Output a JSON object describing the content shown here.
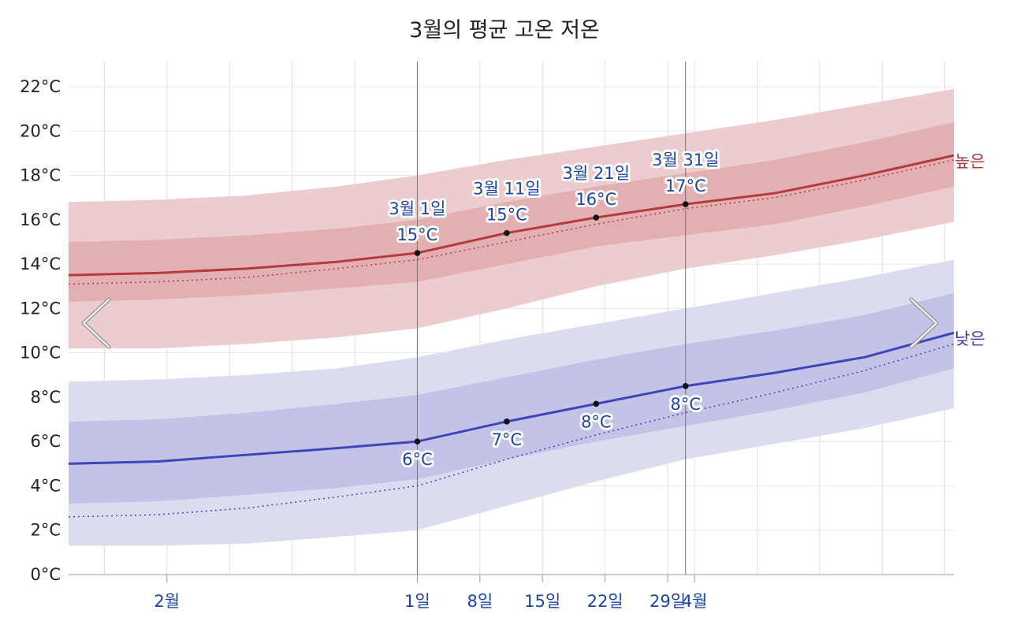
{
  "chart_data": {
    "type": "line",
    "title": "3월의 평균 고온 저온",
    "y_unit": "°C",
    "ylim": [
      0,
      22
    ],
    "y_ticks": [
      0,
      2,
      4,
      6,
      8,
      10,
      12,
      14,
      16,
      18,
      20,
      22
    ],
    "y_tick_labels": [
      "0°C",
      "2°C",
      "4°C",
      "6°C",
      "8°C",
      "10°C",
      "12°C",
      "14°C",
      "16°C",
      "18°C",
      "20°C",
      "22°C"
    ],
    "xlim": [
      "1월 21일",
      "4월 30일"
    ],
    "x_ticks": [
      {
        "label": "2월",
        "x": "2월 1일"
      },
      {
        "label": "1일",
        "x": "3월 1일"
      },
      {
        "label": "8일",
        "x": "3월 8일"
      },
      {
        "label": "15일",
        "x": "3월 15일"
      },
      {
        "label": "22일",
        "x": "3월 22일"
      },
      {
        "label": "29일",
        "x": "3월 29일"
      },
      {
        "label": "4월",
        "x": "4월 1일"
      }
    ],
    "gridlines_x": [
      "1월 25일",
      "2월 1일",
      "2월 8일",
      "2월 15일",
      "2월 22일",
      "3월 1일",
      "3월 8일",
      "3월 15일",
      "3월 22일",
      "3월 29일",
      "4월 1일",
      "4월 8일",
      "4월 15일",
      "4월 22일",
      "4월 29일"
    ],
    "month_bounds": [
      "3월 1일",
      "3월 31일"
    ],
    "grid": true,
    "series": [
      {
        "name": "높은",
        "color": "#b53a3e",
        "x": [
          "1월 21일",
          "1월 31일",
          "2월 10일",
          "2월 20일",
          "3월 1일",
          "3월 11일",
          "3월 21일",
          "3월 31일",
          "4월 10일",
          "4월 20일",
          "4월 30일"
        ],
        "mean": [
          13.5,
          13.6,
          13.8,
          14.1,
          14.5,
          15.4,
          16.1,
          16.7,
          17.2,
          18.0,
          18.9
        ],
        "dotted": [
          13.1,
          13.2,
          13.4,
          13.8,
          14.2,
          15.0,
          15.8,
          16.5,
          17.0,
          17.8,
          18.7
        ],
        "band_inner": {
          "low": [
            12.3,
            12.4,
            12.6,
            12.9,
            13.2,
            14.0,
            14.8,
            15.3,
            15.8,
            16.6,
            17.5
          ],
          "high": [
            15.0,
            15.1,
            15.3,
            15.6,
            16.0,
            16.8,
            17.5,
            18.1,
            18.7,
            19.5,
            20.4
          ]
        },
        "band_outer": {
          "low": [
            10.2,
            10.2,
            10.4,
            10.7,
            11.1,
            12.0,
            13.0,
            13.8,
            14.4,
            15.1,
            15.9
          ],
          "high": [
            16.8,
            16.9,
            17.1,
            17.5,
            18.0,
            18.7,
            19.3,
            19.9,
            20.5,
            21.2,
            21.9
          ]
        }
      },
      {
        "name": "낮은",
        "color": "#3f45b8",
        "x": [
          "1월 21일",
          "1월 31일",
          "2월 10일",
          "2월 20일",
          "3월 1일",
          "3월 11일",
          "3월 21일",
          "3월 31일",
          "4월 10일",
          "4월 20일",
          "4월 30일"
        ],
        "mean": [
          5.0,
          5.1,
          5.4,
          5.7,
          6.0,
          6.9,
          7.7,
          8.5,
          9.1,
          9.8,
          10.9
        ],
        "dotted": [
          2.6,
          2.7,
          3.0,
          3.5,
          4.0,
          5.2,
          6.3,
          7.3,
          8.2,
          9.2,
          10.4
        ],
        "band_inner": {
          "low": [
            3.2,
            3.3,
            3.6,
            3.9,
            4.3,
            5.2,
            6.0,
            6.7,
            7.4,
            8.2,
            9.3
          ],
          "high": [
            6.9,
            7.0,
            7.3,
            7.7,
            8.1,
            8.9,
            9.7,
            10.4,
            11.0,
            11.7,
            12.7
          ]
        },
        "band_outer": {
          "low": [
            1.3,
            1.3,
            1.4,
            1.7,
            2.0,
            3.1,
            4.2,
            5.2,
            5.9,
            6.6,
            7.5
          ],
          "high": [
            8.7,
            8.8,
            9.0,
            9.3,
            9.8,
            10.6,
            11.3,
            12.0,
            12.7,
            13.4,
            14.2
          ]
        }
      }
    ],
    "annotations": [
      {
        "series": "높은",
        "x": "3월 1일",
        "y": 14.5,
        "date_label": "3월 1일",
        "value_label": "15°C"
      },
      {
        "series": "높은",
        "x": "3월 11일",
        "y": 15.4,
        "date_label": "3월 11일",
        "value_label": "15°C"
      },
      {
        "series": "높은",
        "x": "3월 21일",
        "y": 16.1,
        "date_label": "3월 21일",
        "value_label": "16°C"
      },
      {
        "series": "높은",
        "x": "3월 31일",
        "y": 16.7,
        "date_label": "3월 31일",
        "value_label": "17°C"
      },
      {
        "series": "낮은",
        "x": "3월 1일",
        "y": 6.0,
        "value_label": "6°C"
      },
      {
        "series": "낮은",
        "x": "3월 11일",
        "y": 6.9,
        "value_label": "7°C"
      },
      {
        "series": "낮은",
        "x": "3월 21일",
        "y": 7.7,
        "value_label": "8°C"
      },
      {
        "series": "낮은",
        "x": "3월 31일",
        "y": 8.5,
        "value_label": "8°C"
      }
    ],
    "series_labels": {
      "high": "높은",
      "low": "낮은"
    }
  },
  "nav": {
    "prev_icon": "chevron-left-icon",
    "next_icon": "chevron-right-icon"
  }
}
